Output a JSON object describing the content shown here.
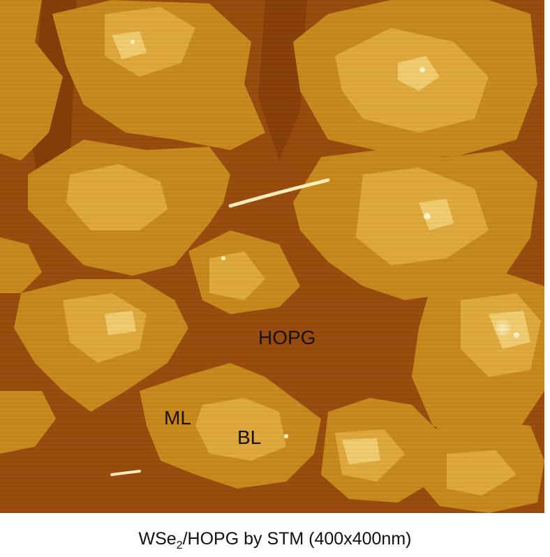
{
  "image": {
    "labels": {
      "hopg": "HOPG",
      "ml": "ML",
      "bl": "BL"
    }
  },
  "caption": {
    "prefix": "WSe",
    "subscript": "2",
    "suffix": "/HOPG by STM (400x400nm)"
  },
  "colors": {
    "substrate": "#9a4d0e",
    "substrate_dark": "#7a3505",
    "monolayer": "#c98a1e",
    "bilayer": "#e0aa3c",
    "trilayer": "#f2cd70",
    "highlight": "#fff4c8",
    "caption_text": "#111111"
  }
}
